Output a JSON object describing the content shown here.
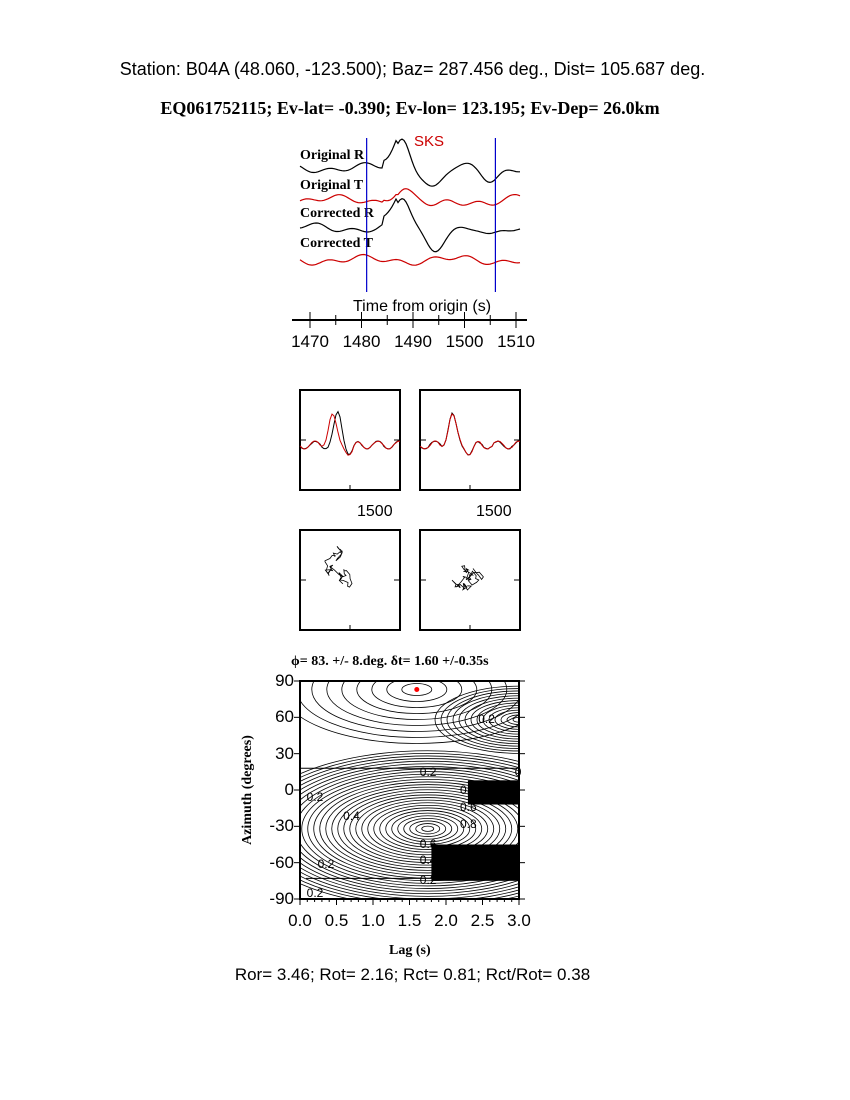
{
  "header": {
    "station_line": "Station: B04A (48.060, -123.500); Baz=  287.456 deg., Dist=  105.687 deg.",
    "event_line": "EQ061752115; Ev-lat=  -0.390; Ev-lon= 123.195; Ev-Dep= 26.0km"
  },
  "chart_data": [
    {
      "type": "line",
      "phase_label": "SKS",
      "trace_labels": [
        "Original R",
        "Original T",
        "Corrected R",
        "Corrected T"
      ],
      "trace_colors": [
        "#000000",
        "#cc0000",
        "#000000",
        "#cc0000"
      ],
      "window_marker_times": [
        1481,
        1506
      ],
      "window_marker_color": "#0000cc",
      "xlabel": "Time from origin (s)",
      "xlim": [
        1466,
        1513
      ],
      "xticks": [
        1470,
        1480,
        1490,
        1500,
        1510
      ]
    },
    {
      "type": "line",
      "panels": [
        "waveform-comparison-before",
        "waveform-comparison-after"
      ],
      "xtick_label": "1500",
      "series_colors": [
        "#000000",
        "#cc0000"
      ]
    },
    {
      "type": "scatter",
      "panels": [
        "particle-motion-before",
        "particle-motion-after"
      ]
    },
    {
      "type": "heatmap",
      "title": "ϕ= 83. +/- 8.deg. δt= 1.60 +/-0.35s",
      "xlabel": "Lag (s)",
      "ylabel": "Azimuth (degrees)",
      "xlim": [
        0.0,
        3.0
      ],
      "ylim": [
        -90,
        90
      ],
      "xticks": [
        "0.0",
        "0.5",
        "1.0",
        "1.5",
        "2.0",
        "2.5",
        "3.0"
      ],
      "yticks": [
        "90",
        "60",
        "30",
        "0",
        "-30",
        "-60",
        "-90"
      ],
      "contour_labels": [
        "0.2",
        "0.2",
        "0.2",
        "0.2",
        "0.4",
        "0.6",
        "0.8",
        "0.6",
        "0.4",
        "0.2",
        "0.2",
        "0",
        "0.4"
      ],
      "best_fit": {
        "lag": 1.6,
        "azimuth": 83,
        "color": "#ff0000"
      }
    }
  ],
  "footer": {
    "ratios": "Ror= 3.46; Rot= 2.16; Rct= 0.81; Rct/Rot= 0.38"
  }
}
